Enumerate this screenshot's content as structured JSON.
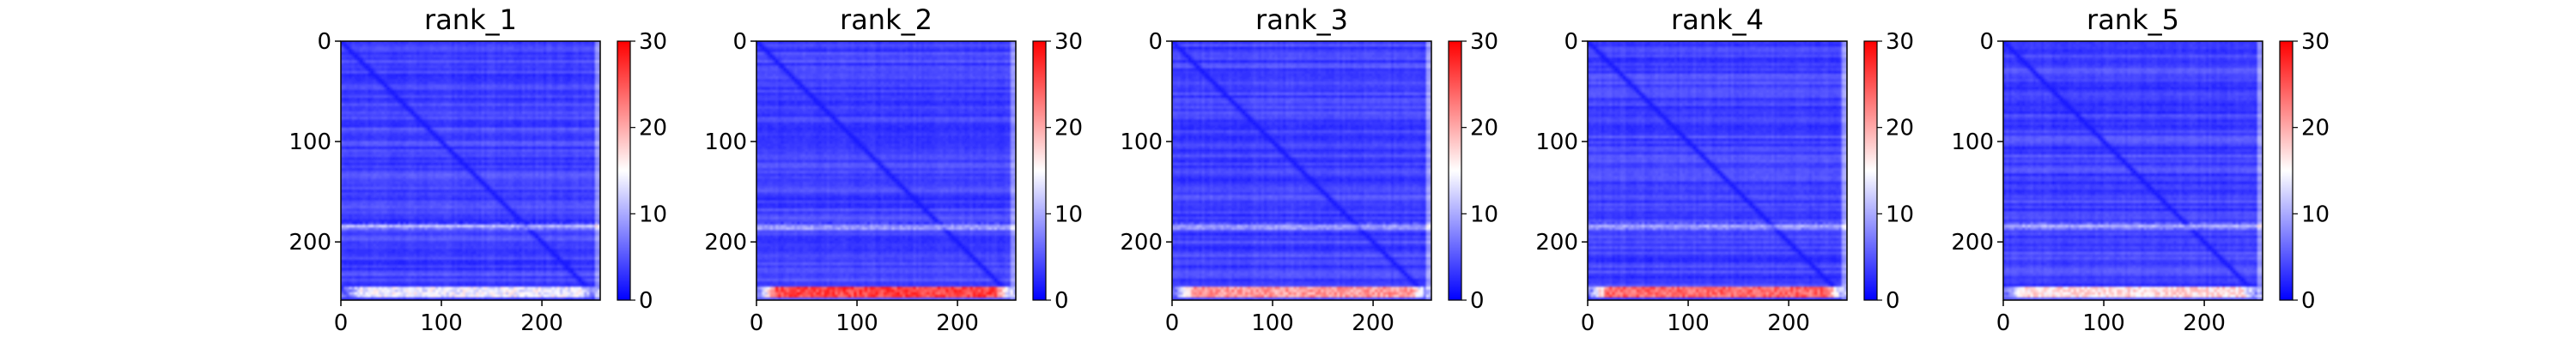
{
  "chart_data": [
    {
      "type": "heatmap",
      "title": "rank_1",
      "x_ticks": [
        0,
        100,
        200
      ],
      "y_ticks": [
        0,
        100,
        200
      ],
      "xlim": [
        0,
        258
      ],
      "ylim": [
        258,
        0
      ],
      "colorbar": {
        "min": 0,
        "max": 30,
        "ticks": [
          0,
          10,
          20,
          30
        ],
        "colormap": "bwr"
      },
      "values": {
        "background_level": 4,
        "diagonal_level": 1.5,
        "bright_row_y": 185,
        "bright_row_level": 12,
        "bottom_band_y": [
          244,
          256
        ],
        "bottom_band_level": 14
      }
    },
    {
      "type": "heatmap",
      "title": "rank_2",
      "x_ticks": [
        0,
        100,
        200
      ],
      "y_ticks": [
        0,
        100,
        200
      ],
      "xlim": [
        0,
        258
      ],
      "ylim": [
        258,
        0
      ],
      "colorbar": {
        "min": 0,
        "max": 30,
        "ticks": [
          0,
          10,
          20,
          30
        ],
        "colormap": "bwr"
      },
      "values": {
        "background_level": 4,
        "diagonal_level": 1.5,
        "bright_row_y": 185,
        "bright_row_level": 12,
        "bottom_band_y": [
          244,
          256
        ],
        "bottom_band_level": 26
      }
    },
    {
      "type": "heatmap",
      "title": "rank_3",
      "x_ticks": [
        0,
        100,
        200
      ],
      "y_ticks": [
        0,
        100,
        200
      ],
      "xlim": [
        0,
        258
      ],
      "ylim": [
        258,
        0
      ],
      "colorbar": {
        "min": 0,
        "max": 30,
        "ticks": [
          0,
          10,
          20,
          30
        ],
        "colormap": "bwr"
      },
      "values": {
        "background_level": 4,
        "diagonal_level": 1.5,
        "bright_row_y": 185,
        "bright_row_level": 12,
        "bottom_band_y": [
          244,
          256
        ],
        "bottom_band_level": 21
      }
    },
    {
      "type": "heatmap",
      "title": "rank_4",
      "x_ticks": [
        0,
        100,
        200
      ],
      "y_ticks": [
        0,
        100,
        200
      ],
      "xlim": [
        0,
        258
      ],
      "ylim": [
        258,
        0
      ],
      "colorbar": {
        "min": 0,
        "max": 30,
        "ticks": [
          0,
          10,
          20,
          30
        ],
        "colormap": "bwr"
      },
      "values": {
        "background_level": 4,
        "diagonal_level": 1.5,
        "bright_row_y": 185,
        "bright_row_level": 12,
        "bottom_band_y": [
          244,
          256
        ],
        "bottom_band_level": 24
      }
    },
    {
      "type": "heatmap",
      "title": "rank_5",
      "x_ticks": [
        0,
        100,
        200
      ],
      "y_ticks": [
        0,
        100,
        200
      ],
      "xlim": [
        0,
        258
      ],
      "ylim": [
        258,
        0
      ],
      "colorbar": {
        "min": 0,
        "max": 30,
        "ticks": [
          0,
          10,
          20,
          30
        ],
        "colormap": "bwr"
      },
      "values": {
        "background_level": 4,
        "diagonal_level": 1.5,
        "bright_row_y": 185,
        "bright_row_level": 12,
        "bottom_band_y": [
          244,
          256
        ],
        "bottom_band_level": 17
      }
    }
  ]
}
